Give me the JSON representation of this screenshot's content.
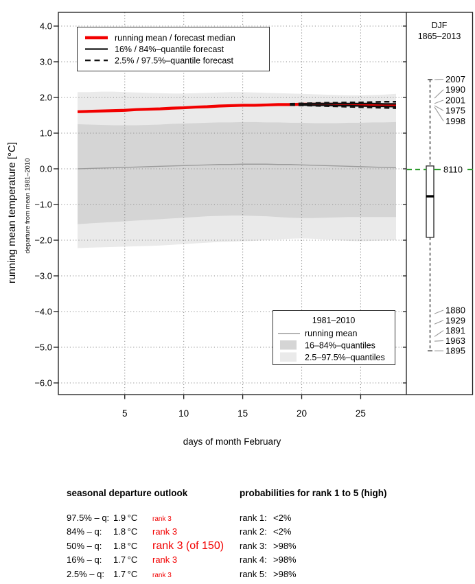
{
  "chart_data": {
    "type": "line",
    "title": "",
    "xlabel": "days of month February",
    "ylabel": "running mean temperature [°C]",
    "ylabel_sub": "departure from mean 1981–2010",
    "xlim": [
      1,
      28
    ],
    "ylim": [
      -6.5,
      4.4
    ],
    "x_ticks": {
      "values": [
        5,
        10,
        15,
        20,
        25
      ],
      "labels": [
        "5",
        "10",
        "15",
        "20",
        "25"
      ]
    },
    "y_ticks": {
      "values": [
        4,
        3,
        2,
        1,
        0,
        -1,
        -2,
        -3,
        -4,
        -5,
        -6
      ],
      "labels": [
        "4.0",
        "3.0",
        "2.0",
        "1.0",
        "0.0",
        "−1.0",
        "−2.0",
        "−3.0",
        "−4.0",
        "−5.0",
        "−6.0"
      ]
    },
    "grid": true,
    "x": [
      1,
      2,
      3,
      4,
      5,
      6,
      7,
      8,
      9,
      10,
      11,
      12,
      13,
      14,
      15,
      16,
      17,
      18,
      19,
      20,
      21,
      22,
      23,
      24,
      25,
      26,
      27,
      28
    ],
    "series": [
      {
        "name": "forecast_median",
        "color": "#f20000",
        "width": 4.2,
        "style": "solid",
        "x": [
          1,
          2,
          3,
          4,
          5,
          6,
          7,
          8,
          9,
          10,
          11,
          12,
          13,
          14,
          15,
          16,
          17,
          18,
          19,
          20,
          21,
          22,
          23,
          24,
          25,
          26,
          27,
          28
        ],
        "y": [
          1.6,
          1.61,
          1.62,
          1.63,
          1.64,
          1.66,
          1.67,
          1.68,
          1.7,
          1.71,
          1.73,
          1.74,
          1.76,
          1.77,
          1.78,
          1.78,
          1.79,
          1.8,
          1.8,
          1.81,
          1.81,
          1.81,
          1.81,
          1.8,
          1.8,
          1.79,
          1.79,
          1.78
        ]
      },
      {
        "name": "forecast_q84",
        "color": "#111111",
        "width": 2.3,
        "style": "solid",
        "x": [
          20,
          21,
          22,
          23,
          24,
          25,
          26,
          27,
          28
        ],
        "y": [
          1.82,
          1.83,
          1.83,
          1.83,
          1.83,
          1.83,
          1.83,
          1.82,
          1.82
        ]
      },
      {
        "name": "forecast_q16",
        "color": "#111111",
        "width": 2.3,
        "style": "solid",
        "x": [
          20,
          21,
          22,
          23,
          24,
          25,
          26,
          27,
          28
        ],
        "y": [
          1.79,
          1.78,
          1.78,
          1.77,
          1.77,
          1.76,
          1.75,
          1.75,
          1.74
        ]
      },
      {
        "name": "forecast_q97_5",
        "color": "#111111",
        "width": 2.6,
        "style": "dashed",
        "x": [
          19,
          20,
          21,
          22,
          23,
          24,
          25,
          26,
          27,
          28
        ],
        "y": [
          1.82,
          1.83,
          1.84,
          1.85,
          1.85,
          1.86,
          1.86,
          1.87,
          1.88,
          1.88
        ]
      },
      {
        "name": "forecast_q2_5",
        "color": "#111111",
        "width": 2.6,
        "style": "dashed",
        "x": [
          19,
          20,
          21,
          22,
          23,
          24,
          25,
          26,
          27,
          28
        ],
        "y": [
          1.79,
          1.78,
          1.77,
          1.76,
          1.75,
          1.74,
          1.73,
          1.72,
          1.71,
          1.7
        ]
      },
      {
        "name": "climatology_running_mean",
        "color": "#9b9b9b",
        "width": 1.4,
        "style": "solid",
        "x": [
          1,
          2,
          3,
          4,
          5,
          6,
          7,
          8,
          9,
          10,
          11,
          12,
          13,
          14,
          15,
          16,
          17,
          18,
          19,
          20,
          21,
          22,
          23,
          24,
          25,
          26,
          27,
          28
        ],
        "y": [
          0.0,
          0.01,
          0.02,
          0.03,
          0.04,
          0.05,
          0.06,
          0.07,
          0.08,
          0.09,
          0.1,
          0.11,
          0.12,
          0.12,
          0.13,
          0.13,
          0.13,
          0.12,
          0.12,
          0.11,
          0.1,
          0.09,
          0.08,
          0.07,
          0.06,
          0.05,
          0.04,
          0.03
        ]
      }
    ],
    "bands": [
      {
        "name": "climatology_2_5_97_5_band",
        "color": "#eaeaea",
        "upper": [
          2.15,
          2.15,
          2.16,
          2.16,
          2.15,
          2.14,
          2.13,
          2.12,
          2.11,
          2.11,
          2.12,
          2.13,
          2.14,
          2.15,
          2.15,
          2.14,
          2.13,
          2.12,
          2.11,
          2.1,
          2.09,
          2.08,
          2.07,
          2.06,
          2.06,
          2.07,
          2.08,
          2.1
        ],
        "lower": [
          -2.22,
          -2.21,
          -2.2,
          -2.19,
          -2.18,
          -2.17,
          -2.16,
          -2.15,
          -2.13,
          -2.11,
          -2.09,
          -2.07,
          -2.05,
          -2.04,
          -2.03,
          -2.02,
          -2.0,
          -1.98,
          -1.96,
          -1.95,
          -1.96,
          -1.98,
          -2.0,
          -2.02,
          -2.03,
          -2.02,
          -2.01,
          -2.0
        ]
      },
      {
        "name": "climatology_16_84_band",
        "color": "#d5d5d5",
        "upper": [
          1.25,
          1.24,
          1.23,
          1.22,
          1.22,
          1.22,
          1.23,
          1.24,
          1.26,
          1.27,
          1.28,
          1.29,
          1.3,
          1.3,
          1.31,
          1.31,
          1.3,
          1.3,
          1.29,
          1.29,
          1.28,
          1.28,
          1.28,
          1.29,
          1.29,
          1.3,
          1.3,
          1.31
        ],
        "lower": [
          -1.55,
          -1.53,
          -1.51,
          -1.49,
          -1.47,
          -1.45,
          -1.43,
          -1.41,
          -1.39,
          -1.37,
          -1.35,
          -1.33,
          -1.32,
          -1.31,
          -1.31,
          -1.32,
          -1.33,
          -1.35,
          -1.37,
          -1.38,
          -1.38,
          -1.37,
          -1.36,
          -1.35,
          -1.35,
          -1.35,
          -1.35,
          -1.35
        ]
      }
    ],
    "boxplot": {
      "whisker_top": 2.5,
      "box_top": 0.08,
      "median": -0.77,
      "box_bottom": -1.92,
      "whisker_bottom": -5.1,
      "reference_value": 0.0
    }
  },
  "legend_forecast": {
    "items": [
      {
        "label": "running mean / forecast median",
        "style": "red-line"
      },
      {
        "label": "16% / 84%–quantile forecast",
        "style": "black-line"
      },
      {
        "label": "2.5% / 97.5%–quantile forecast",
        "style": "black-dashed"
      }
    ]
  },
  "legend_climatology": {
    "title": "1981–2010",
    "items": [
      {
        "label": "running mean",
        "style": "gray-line"
      },
      {
        "label": "16–84%–quantiles",
        "style": "dark-swatch"
      },
      {
        "label": "2.5–97.5%–quantiles",
        "style": "light-swatch"
      }
    ]
  },
  "right_panel": {
    "title_line1": "DJF",
    "title_line2": "1865–2013",
    "count_label": "8110",
    "top_years": [
      {
        "label": "2007",
        "value": 2.5
      },
      {
        "label": "1990",
        "value": 1.98
      },
      {
        "label": "2001",
        "value": 1.83
      },
      {
        "label": "1975",
        "value": 1.77
      },
      {
        "label": "1998",
        "value": 1.73
      }
    ],
    "bottom_years": [
      {
        "label": "1880",
        "value": -4.06
      },
      {
        "label": "1929",
        "value": -4.35
      },
      {
        "label": "1891",
        "value": -4.7
      },
      {
        "label": "1963",
        "value": -4.83
      },
      {
        "label": "1895",
        "value": -5.1
      }
    ]
  },
  "outlook": {
    "heading": "seasonal departure outlook",
    "rows": [
      {
        "label": "97.5% – q:",
        "value": "1.9 °C",
        "rank": "rank 3"
      },
      {
        "label": "84% – q:",
        "value": "1.8 °C",
        "rank": "rank 3"
      },
      {
        "label": "50% – q:",
        "value": "1.8 °C",
        "rank": "rank 3 (of 150)"
      },
      {
        "label": "16% – q:",
        "value": "1.7 °C",
        "rank": "rank 3"
      },
      {
        "label": "2.5% – q:",
        "value": "1.7 °C",
        "rank": "rank 3"
      }
    ]
  },
  "probabilities": {
    "heading": "probabilities for rank 1 to 5 (high)",
    "rows": [
      {
        "label": "rank 1:",
        "value": "<2%"
      },
      {
        "label": "rank 2:",
        "value": "<2%"
      },
      {
        "label": "rank 3:",
        "value": ">98%"
      },
      {
        "label": "rank 4:",
        "value": ">98%"
      },
      {
        "label": "rank 5:",
        "value": ">98%"
      }
    ]
  },
  "colors": {
    "forecast_red": "#f20000",
    "quantile_black": "#111111",
    "climatology_gray_line": "#9b9b9b",
    "band_light": "#eaeaea",
    "band_dark": "#d5d5d5",
    "reference_green": "#2e9b2e",
    "year_red": "#f20000",
    "year_gray": "#a8a8a8",
    "leader_gray": "#999999",
    "grid_gray": "#8f8f8f"
  }
}
